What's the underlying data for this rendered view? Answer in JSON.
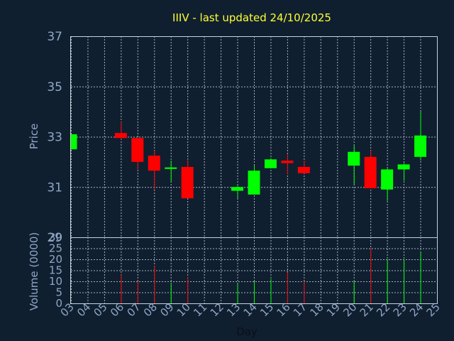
{
  "chart_data": {
    "type": "candlestick",
    "title": "IIIV - last updated 24/10/2025",
    "colors": {
      "up": "#00ff00",
      "down": "#ff0000",
      "title": "#ffff33",
      "axis_text": "#8fa6c4",
      "background": "#0f1f30"
    },
    "price": {
      "ylabel": "Price",
      "ylim": [
        29,
        37
      ],
      "ticks": [
        "37",
        "35",
        "33",
        "31",
        "29"
      ],
      "tick_values": [
        37,
        35,
        33,
        31,
        29
      ]
    },
    "volume": {
      "ylabel": "Volume (0000)",
      "ylim": [
        0,
        30
      ],
      "ticks": [
        "30",
        "25",
        "20",
        "15",
        "10",
        "5",
        "0"
      ],
      "tick_values": [
        30,
        25,
        20,
        15,
        10,
        5,
        0
      ]
    },
    "xlabel": "Day",
    "x_ticks": [
      "03",
      "04",
      "05",
      "06",
      "07",
      "08",
      "09",
      "10",
      "11",
      "12",
      "13",
      "14",
      "15",
      "16",
      "17",
      "18",
      "19",
      "20",
      "21",
      "22",
      "23",
      "24",
      "25"
    ],
    "candles": [
      {
        "day": "03",
        "open": 32.5,
        "high": 33.1,
        "low": 32.5,
        "close": 33.1,
        "volume": 0
      },
      {
        "day": "06",
        "open": 33.15,
        "high": 33.6,
        "low": 32.9,
        "close": 32.95,
        "volume": 13
      },
      {
        "day": "07",
        "open": 32.95,
        "high": 32.95,
        "low": 31.7,
        "close": 32.0,
        "volume": 10
      },
      {
        "day": "08",
        "open": 32.25,
        "high": 32.45,
        "low": 30.9,
        "close": 31.65,
        "volume": 17
      },
      {
        "day": "09",
        "open": 31.72,
        "high": 32.05,
        "low": 31.2,
        "close": 31.78,
        "volume": 9
      },
      {
        "day": "10",
        "open": 31.8,
        "high": 32.1,
        "low": 30.55,
        "close": 30.55,
        "volume": 12
      },
      {
        "day": "13",
        "open": 30.85,
        "high": 31.05,
        "low": 30.55,
        "close": 31.0,
        "volume": 9
      },
      {
        "day": "14",
        "open": 30.7,
        "high": 31.85,
        "low": 30.7,
        "close": 31.65,
        "volume": 10
      },
      {
        "day": "15",
        "open": 31.75,
        "high": 32.15,
        "low": 31.75,
        "close": 32.1,
        "volume": 11
      },
      {
        "day": "16",
        "open": 32.05,
        "high": 32.3,
        "low": 31.5,
        "close": 31.95,
        "volume": 14
      },
      {
        "day": "17",
        "open": 31.8,
        "high": 32.05,
        "low": 31.55,
        "close": 31.55,
        "volume": 10
      },
      {
        "day": "20",
        "open": 31.85,
        "high": 32.65,
        "low": 31.1,
        "close": 32.4,
        "volume": 10
      },
      {
        "day": "21",
        "open": 32.2,
        "high": 32.45,
        "low": 30.95,
        "close": 30.95,
        "volume": 25
      },
      {
        "day": "22",
        "open": 30.9,
        "high": 31.75,
        "low": 30.45,
        "close": 31.7,
        "volume": 20
      },
      {
        "day": "23",
        "open": 31.7,
        "high": 31.95,
        "low": 31.25,
        "close": 31.9,
        "volume": 20
      },
      {
        "day": "24",
        "open": 32.2,
        "high": 34.0,
        "low": 32.05,
        "close": 33.05,
        "volume": 23
      }
    ]
  }
}
